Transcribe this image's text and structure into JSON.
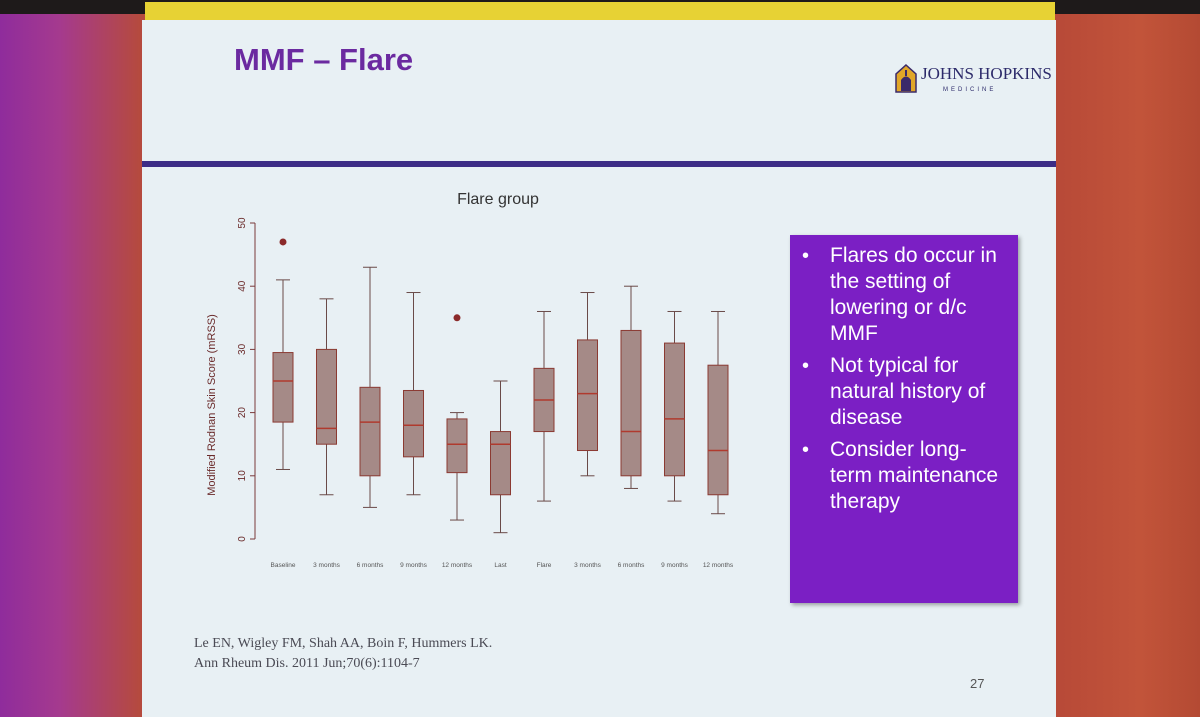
{
  "slide": {
    "title": "MMF – Flare",
    "logo": {
      "name": "JOHNS HOPKINS",
      "subtitle": "MEDICINE",
      "icon": "dome-shield-icon"
    },
    "page_number": "27",
    "citation": {
      "line1": "Le EN, Wigley FM, Shah AA, Boin F, Hummers LK.",
      "line2": "Ann Rheum Dis. 2011 Jun;70(6):1104-7"
    },
    "bullets": [
      "Flares do occur in the setting of lowering or d/c MMF",
      "Not typical for natural history of disease",
      "Consider long-term maintenance therapy"
    ],
    "colors": {
      "title": "#6b2aa0",
      "divider": "#3c2c86",
      "bullet_box": "#7b1fc4",
      "box_fill": "#a58a87",
      "box_stroke": "#8b3a32",
      "outlier": "#8b2a2a"
    }
  },
  "chart_data": {
    "type": "boxplot",
    "title": "Flare group",
    "ylabel": "Modified Rodnan Skin Score (mRSS)",
    "xlabel": "",
    "ylim": [
      0,
      50
    ],
    "yticks": [
      0,
      10,
      20,
      30,
      40,
      50
    ],
    "categories": [
      "Baseline",
      "3 months",
      "6 months",
      "9 months",
      "12 months",
      "Last",
      "Flare",
      "3 months",
      "6 months",
      "9 months",
      "12 months"
    ],
    "boxes": [
      {
        "min": 11,
        "q1": 18.5,
        "median": 25,
        "q3": 29.5,
        "max": 41,
        "outliers": [
          47
        ]
      },
      {
        "min": 7,
        "q1": 15,
        "median": 17.5,
        "q3": 30,
        "max": 38,
        "outliers": []
      },
      {
        "min": 5,
        "q1": 10,
        "median": 18.5,
        "q3": 24,
        "max": 43,
        "outliers": []
      },
      {
        "min": 7,
        "q1": 13,
        "median": 18,
        "q3": 23.5,
        "max": 39,
        "outliers": []
      },
      {
        "min": 3,
        "q1": 10.5,
        "median": 15,
        "q3": 19,
        "max": 20,
        "outliers": [
          35
        ]
      },
      {
        "min": 1,
        "q1": 7,
        "median": 15,
        "q3": 17,
        "max": 25,
        "outliers": []
      },
      {
        "min": 6,
        "q1": 17,
        "median": 22,
        "q3": 27,
        "max": 36,
        "outliers": []
      },
      {
        "min": 10,
        "q1": 14,
        "median": 23,
        "q3": 31.5,
        "max": 39,
        "outliers": []
      },
      {
        "min": 8,
        "q1": 10,
        "median": 17,
        "q3": 33,
        "max": 40,
        "outliers": []
      },
      {
        "min": 6,
        "q1": 10,
        "median": 19,
        "q3": 31,
        "max": 36,
        "outliers": []
      },
      {
        "min": 4,
        "q1": 7,
        "median": 14,
        "q3": 27.5,
        "max": 36,
        "outliers": []
      }
    ]
  }
}
